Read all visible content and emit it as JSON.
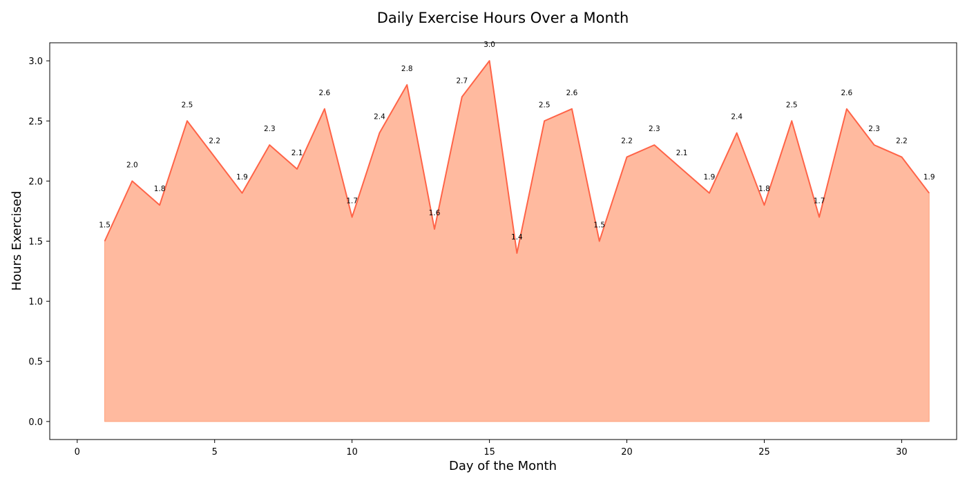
{
  "chart_data": {
    "type": "area",
    "title": "Daily Exercise Hours Over a Month",
    "xlabel": "Day of the Month",
    "ylabel": "Hours Exercised",
    "x": [
      1,
      2,
      3,
      4,
      5,
      6,
      7,
      8,
      9,
      10,
      11,
      12,
      13,
      14,
      15,
      16,
      17,
      18,
      19,
      20,
      21,
      22,
      23,
      24,
      25,
      26,
      27,
      28,
      29,
      30,
      31
    ],
    "values": [
      1.5,
      2.0,
      1.8,
      2.5,
      2.2,
      1.9,
      2.3,
      2.1,
      2.6,
      1.7,
      2.4,
      2.8,
      1.6,
      2.7,
      3.0,
      1.4,
      2.5,
      2.6,
      1.5,
      2.2,
      2.3,
      2.1,
      1.9,
      2.4,
      1.8,
      2.5,
      1.7,
      2.6,
      2.3,
      2.2,
      1.9
    ],
    "data_labels": [
      "1.5",
      "2.0",
      "1.8",
      "2.5",
      "2.2",
      "1.9",
      "2.3",
      "2.1",
      "2.6",
      "1.7",
      "2.4",
      "2.8",
      "1.6",
      "2.7",
      "3.0",
      "1.4",
      "2.5",
      "2.6",
      "1.5",
      "2.2",
      "2.3",
      "2.1",
      "1.9",
      "2.4",
      "1.8",
      "2.5",
      "1.7",
      "2.6",
      "2.3",
      "2.2",
      "1.9"
    ],
    "xlim": [
      -1.0,
      32.0
    ],
    "ylim": [
      -0.15,
      3.15
    ],
    "xticks": [
      0,
      5,
      10,
      15,
      20,
      25,
      30
    ],
    "xtick_labels": [
      "0",
      "5",
      "10",
      "15",
      "20",
      "25",
      "30"
    ],
    "yticks": [
      0.0,
      0.5,
      1.0,
      1.5,
      2.0,
      2.5,
      3.0
    ],
    "ytick_labels": [
      "0.0",
      "0.5",
      "1.0",
      "1.5",
      "2.0",
      "2.5",
      "3.0"
    ],
    "grid": false,
    "colors": {
      "line": "#ff6347",
      "fill": "#ffa07a"
    }
  }
}
